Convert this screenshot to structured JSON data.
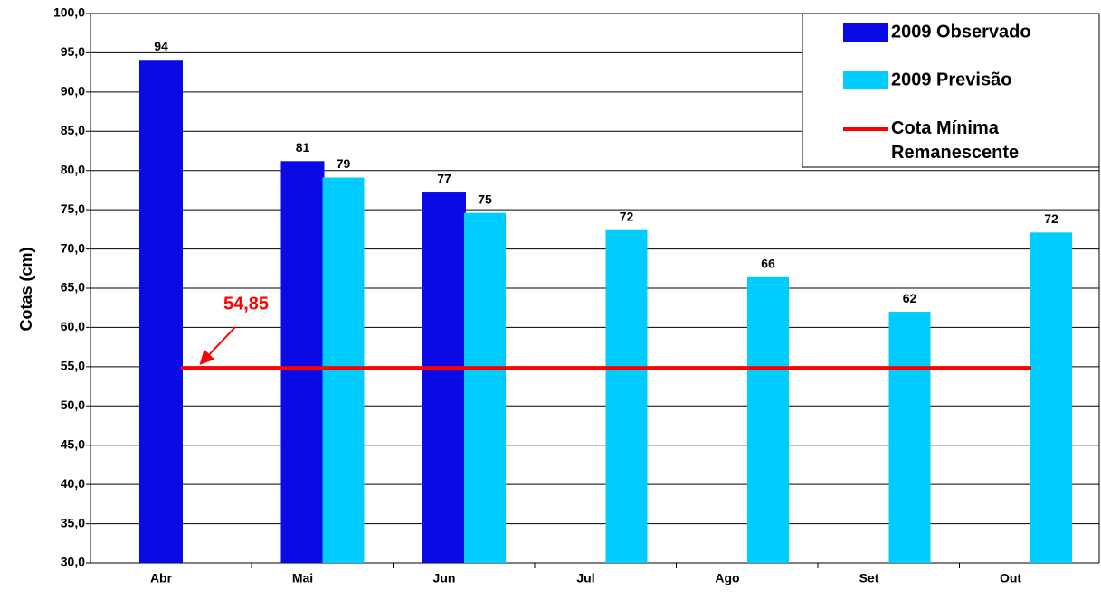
{
  "chart_data": {
    "type": "bar",
    "y_label": "Cotas (cm)",
    "categories": [
      "Abr",
      "Mai",
      "Jun",
      "Jul",
      "Ago",
      "Set",
      "Out"
    ],
    "series": [
      {
        "name": "2009 Observado",
        "color": "#0a0ae6",
        "values": [
          94.1,
          81.2,
          77.2,
          null,
          null,
          null,
          null
        ],
        "value_labels": [
          "94",
          "81",
          "77",
          null,
          null,
          null,
          null
        ]
      },
      {
        "name": "2009 Previsão",
        "color": "#00ccff",
        "values": [
          null,
          79.1,
          74.6,
          72.4,
          66.4,
          62.0,
          72.1
        ],
        "value_labels": [
          null,
          "79",
          "75",
          "72",
          "66",
          "62",
          "72"
        ]
      }
    ],
    "reference_line": {
      "name": "Cota Mínima Remanescente",
      "value": 54.85,
      "value_label": "54,85",
      "color": "#ff0000"
    },
    "ylim": [
      30,
      100
    ],
    "yticks": [
      {
        "value": 30,
        "label": "30,0"
      },
      {
        "value": 35,
        "label": "35,0"
      },
      {
        "value": 40,
        "label": "40,0"
      },
      {
        "value": 45,
        "label": "45,0"
      },
      {
        "value": 50,
        "label": "50,0"
      },
      {
        "value": 55,
        "label": "55,0"
      },
      {
        "value": 60,
        "label": "60,0"
      },
      {
        "value": 65,
        "label": "65,0"
      },
      {
        "value": 70,
        "label": "70,0"
      },
      {
        "value": 75,
        "label": "75,0"
      },
      {
        "value": 80,
        "label": "80,0"
      },
      {
        "value": 85,
        "label": "85,0"
      },
      {
        "value": 90,
        "label": "90,0"
      },
      {
        "value": 95,
        "label": "95,0"
      },
      {
        "value": 100,
        "label": "100,0"
      }
    ],
    "grid": true
  }
}
